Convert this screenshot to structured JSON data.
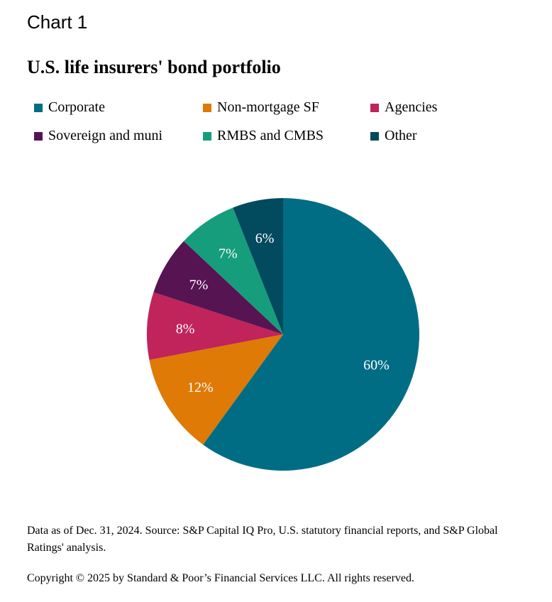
{
  "header": {
    "chart_label": "Chart 1",
    "title": "U.S. life insurers' bond portfolio"
  },
  "chart_data": {
    "type": "pie",
    "title": "U.S. life insurers' bond portfolio",
    "legend_placement": "top",
    "slices": [
      {
        "name": "Corporate",
        "value": 60,
        "label": "60%",
        "color": "#006D85"
      },
      {
        "name": "Non-mortgage SF",
        "value": 12,
        "label": "12%",
        "color": "#DE7A05"
      },
      {
        "name": "Agencies",
        "value": 8,
        "label": "8%",
        "color": "#C0245A"
      },
      {
        "name": "Sovereign and muni",
        "value": 7,
        "label": "7%",
        "color": "#561452"
      },
      {
        "name": "RMBS and CMBS",
        "value": 7,
        "label": "7%",
        "color": "#169D7C"
      },
      {
        "name": "Other",
        "value": 6,
        "label": "6%",
        "color": "#024A5E"
      }
    ]
  },
  "footer": {
    "note": "Data as of Dec. 31, 2024. Source: S&P Capital IQ Pro, U.S. statutory financial reports, and S&P Global Ratings' analysis.",
    "copyright": "Copyright © 2025 by Standard & Poor’s Financial Services LLC. All rights reserved."
  }
}
